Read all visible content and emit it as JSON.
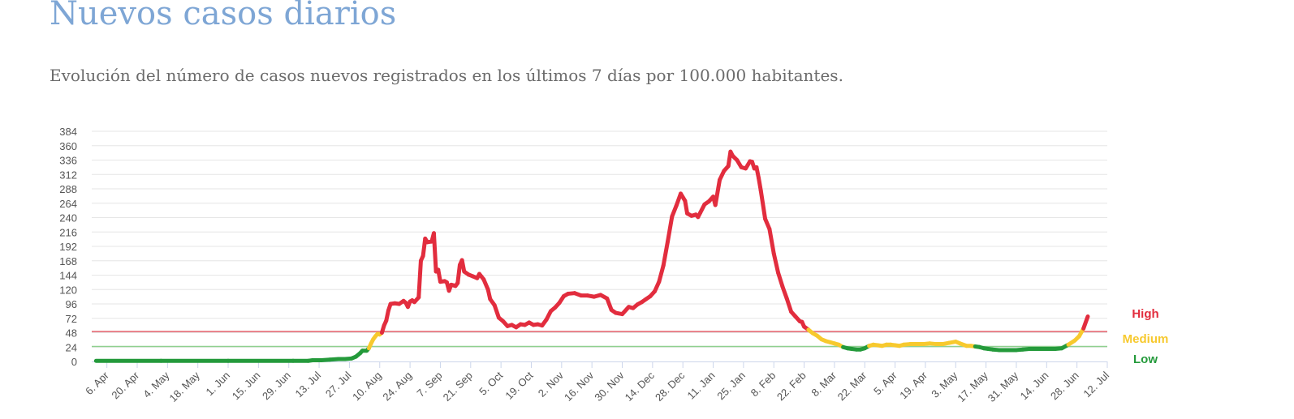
{
  "page": {
    "title": "Nuevos casos diarios",
    "subtitle": "Evolución del número de casos nuevos registrados en los últimos 7 días por 100.000 habitantes."
  },
  "colors": {
    "high": "#e22d3e",
    "medium": "#f7c92e",
    "low": "#249a3b",
    "title": "#7ea6d5"
  },
  "chart_data": {
    "type": "line",
    "ylim": [
      0,
      384
    ],
    "yticks": [
      0,
      24,
      48,
      72,
      96,
      120,
      144,
      168,
      192,
      216,
      240,
      264,
      288,
      312,
      336,
      360,
      384
    ],
    "xlim": [
      "2020-03-30",
      "2021-07-12"
    ],
    "xticks": [
      {
        "date": "2020-04-06",
        "label": "6. Apr"
      },
      {
        "date": "2020-04-20",
        "label": "20. Apr"
      },
      {
        "date": "2020-05-04",
        "label": "4. May"
      },
      {
        "date": "2020-05-18",
        "label": "18. May"
      },
      {
        "date": "2020-06-01",
        "label": "1. Jun"
      },
      {
        "date": "2020-06-15",
        "label": "15. Jun"
      },
      {
        "date": "2020-06-29",
        "label": "29. Jun"
      },
      {
        "date": "2020-07-13",
        "label": "13. Jul"
      },
      {
        "date": "2020-07-27",
        "label": "27. Jul"
      },
      {
        "date": "2020-08-10",
        "label": "10. Aug"
      },
      {
        "date": "2020-08-24",
        "label": "24. Aug"
      },
      {
        "date": "2020-09-07",
        "label": "7. Sep"
      },
      {
        "date": "2020-09-21",
        "label": "21. Sep"
      },
      {
        "date": "2020-10-05",
        "label": "5. Oct"
      },
      {
        "date": "2020-10-19",
        "label": "19. Oct"
      },
      {
        "date": "2020-11-02",
        "label": "2. Nov"
      },
      {
        "date": "2020-11-16",
        "label": "16. Nov"
      },
      {
        "date": "2020-11-30",
        "label": "30. Nov"
      },
      {
        "date": "2020-12-14",
        "label": "14. Dec"
      },
      {
        "date": "2020-12-28",
        "label": "28. Dec"
      },
      {
        "date": "2021-01-11",
        "label": "11. Jan"
      },
      {
        "date": "2021-01-25",
        "label": "25. Jan"
      },
      {
        "date": "2021-02-08",
        "label": "8. Feb"
      },
      {
        "date": "2021-02-22",
        "label": "22. Feb"
      },
      {
        "date": "2021-03-08",
        "label": "8. Mar"
      },
      {
        "date": "2021-03-22",
        "label": "22. Mar"
      },
      {
        "date": "2021-04-05",
        "label": "5. Apr"
      },
      {
        "date": "2021-04-19",
        "label": "19. Apr"
      },
      {
        "date": "2021-05-03",
        "label": "3. May"
      },
      {
        "date": "2021-05-17",
        "label": "17. May"
      },
      {
        "date": "2021-05-31",
        "label": "31. May"
      },
      {
        "date": "2021-06-14",
        "label": "14. Jun"
      },
      {
        "date": "2021-06-28",
        "label": "28. Jun"
      },
      {
        "date": "2021-07-12",
        "label": "12. Jul"
      }
    ],
    "thresholds": [
      {
        "name": "High",
        "value": 50,
        "line_color": "#e66a74",
        "label_color": "#e22d3e"
      },
      {
        "name": "Medium",
        "value": 25,
        "line_color": "#8fd08f",
        "label_color": "#f7c92e"
      },
      {
        "name": "Low",
        "value": null,
        "line_color": null,
        "label_color": "#249a3b"
      }
    ],
    "series": [
      {
        "points": [
          [
            "2020-04-01",
            1
          ],
          [
            "2020-05-01",
            1
          ],
          [
            "2020-06-01",
            1
          ],
          [
            "2020-07-01",
            1
          ],
          [
            "2020-07-08",
            1
          ],
          [
            "2020-07-10",
            2
          ],
          [
            "2020-07-14",
            2
          ],
          [
            "2020-07-18",
            3
          ],
          [
            "2020-07-22",
            4
          ],
          [
            "2020-07-25",
            4
          ],
          [
            "2020-07-28",
            5
          ],
          [
            "2020-07-30",
            8
          ],
          [
            "2020-08-01",
            14
          ],
          [
            "2020-08-02",
            18
          ],
          [
            "2020-08-04",
            18
          ],
          [
            "2020-08-05",
            22
          ],
          [
            "2020-08-06",
            30
          ],
          [
            "2020-08-07",
            37
          ],
          [
            "2020-08-08",
            42
          ],
          [
            "2020-08-09",
            46
          ],
          [
            "2020-08-10",
            45
          ],
          [
            "2020-08-11",
            48
          ],
          [
            "2020-08-12",
            60
          ],
          [
            "2020-08-13",
            68
          ],
          [
            "2020-08-14",
            85
          ],
          [
            "2020-08-15",
            96
          ],
          [
            "2020-08-17",
            97
          ],
          [
            "2020-08-19",
            96
          ],
          [
            "2020-08-21",
            101
          ],
          [
            "2020-08-22",
            98
          ],
          [
            "2020-08-23",
            91
          ],
          [
            "2020-08-24",
            100
          ],
          [
            "2020-08-25",
            102
          ],
          [
            "2020-08-26",
            99
          ],
          [
            "2020-08-28",
            107
          ],
          [
            "2020-08-29",
            168
          ],
          [
            "2020-08-30",
            176
          ],
          [
            "2020-08-31",
            205
          ],
          [
            "2020-09-01",
            199
          ],
          [
            "2020-09-03",
            200
          ],
          [
            "2020-09-04",
            214
          ],
          [
            "2020-09-05",
            150
          ],
          [
            "2020-09-06",
            153
          ],
          [
            "2020-09-07",
            133
          ],
          [
            "2020-09-09",
            134
          ],
          [
            "2020-09-10",
            132
          ],
          [
            "2020-09-11",
            118
          ],
          [
            "2020-09-12",
            128
          ],
          [
            "2020-09-14",
            126
          ],
          [
            "2020-09-15",
            131
          ],
          [
            "2020-09-16",
            161
          ],
          [
            "2020-09-17",
            169
          ],
          [
            "2020-09-18",
            150
          ],
          [
            "2020-09-20",
            145
          ],
          [
            "2020-09-22",
            142
          ],
          [
            "2020-09-24",
            139
          ],
          [
            "2020-09-25",
            146
          ],
          [
            "2020-09-27",
            137
          ],
          [
            "2020-09-29",
            120
          ],
          [
            "2020-09-30",
            104
          ],
          [
            "2020-10-02",
            94
          ],
          [
            "2020-10-04",
            73
          ],
          [
            "2020-10-06",
            67
          ],
          [
            "2020-10-08",
            59
          ],
          [
            "2020-10-10",
            61
          ],
          [
            "2020-10-12",
            57
          ],
          [
            "2020-10-14",
            62
          ],
          [
            "2020-10-16",
            61
          ],
          [
            "2020-10-18",
            65
          ],
          [
            "2020-10-20",
            61
          ],
          [
            "2020-10-22",
            62
          ],
          [
            "2020-10-24",
            60
          ],
          [
            "2020-10-26",
            70
          ],
          [
            "2020-10-28",
            84
          ],
          [
            "2020-10-30",
            90
          ],
          [
            "2020-11-01",
            98
          ],
          [
            "2020-11-03",
            109
          ],
          [
            "2020-11-05",
            113
          ],
          [
            "2020-11-08",
            114
          ],
          [
            "2020-11-11",
            110
          ],
          [
            "2020-11-14",
            110
          ],
          [
            "2020-11-17",
            108
          ],
          [
            "2020-11-20",
            111
          ],
          [
            "2020-11-23",
            105
          ],
          [
            "2020-11-25",
            86
          ],
          [
            "2020-11-27",
            81
          ],
          [
            "2020-11-30",
            79
          ],
          [
            "2020-12-03",
            91
          ],
          [
            "2020-12-05",
            89
          ],
          [
            "2020-12-07",
            95
          ],
          [
            "2020-12-09",
            99
          ],
          [
            "2020-12-11",
            104
          ],
          [
            "2020-12-13",
            109
          ],
          [
            "2020-12-15",
            117
          ],
          [
            "2020-12-17",
            133
          ],
          [
            "2020-12-19",
            160
          ],
          [
            "2020-12-21",
            200
          ],
          [
            "2020-12-23",
            242
          ],
          [
            "2020-12-25",
            260
          ],
          [
            "2020-12-27",
            280
          ],
          [
            "2020-12-29",
            268
          ],
          [
            "2020-12-30",
            247
          ],
          [
            "2021-01-01",
            243
          ],
          [
            "2021-01-03",
            245
          ],
          [
            "2021-01-04",
            241
          ],
          [
            "2021-01-05",
            248
          ],
          [
            "2021-01-07",
            262
          ],
          [
            "2021-01-09",
            267
          ],
          [
            "2021-01-11",
            275
          ],
          [
            "2021-01-12",
            261
          ],
          [
            "2021-01-14",
            303
          ],
          [
            "2021-01-16",
            318
          ],
          [
            "2021-01-18",
            326
          ],
          [
            "2021-01-19",
            350
          ],
          [
            "2021-01-20",
            343
          ],
          [
            "2021-01-22",
            336
          ],
          [
            "2021-01-24",
            324
          ],
          [
            "2021-01-26",
            322
          ],
          [
            "2021-01-28",
            334
          ],
          [
            "2021-01-29",
            333
          ],
          [
            "2021-01-30",
            322
          ],
          [
            "2021-01-31",
            324
          ],
          [
            "2021-02-01",
            306
          ],
          [
            "2021-02-02",
            285
          ],
          [
            "2021-02-04",
            238
          ],
          [
            "2021-02-06",
            221
          ],
          [
            "2021-02-08",
            180
          ],
          [
            "2021-02-10",
            148
          ],
          [
            "2021-02-12",
            125
          ],
          [
            "2021-02-14",
            105
          ],
          [
            "2021-02-16",
            83
          ],
          [
            "2021-02-18",
            75
          ],
          [
            "2021-02-20",
            67
          ],
          [
            "2021-02-21",
            66
          ],
          [
            "2021-02-22",
            58
          ],
          [
            "2021-02-24",
            53
          ],
          [
            "2021-02-26",
            47
          ],
          [
            "2021-02-28",
            43
          ],
          [
            "2021-03-02",
            37
          ],
          [
            "2021-03-04",
            34
          ],
          [
            "2021-03-06",
            32
          ],
          [
            "2021-03-08",
            30
          ],
          [
            "2021-03-10",
            28
          ],
          [
            "2021-03-12",
            24
          ],
          [
            "2021-03-14",
            22
          ],
          [
            "2021-03-16",
            21
          ],
          [
            "2021-03-18",
            20
          ],
          [
            "2021-03-20",
            20
          ],
          [
            "2021-03-22",
            22
          ],
          [
            "2021-03-24",
            26
          ],
          [
            "2021-03-26",
            28
          ],
          [
            "2021-03-28",
            27
          ],
          [
            "2021-03-30",
            26
          ],
          [
            "2021-04-01",
            28
          ],
          [
            "2021-04-03",
            28
          ],
          [
            "2021-04-05",
            27
          ],
          [
            "2021-04-07",
            26
          ],
          [
            "2021-04-09",
            28
          ],
          [
            "2021-04-12",
            29
          ],
          [
            "2021-04-15",
            29
          ],
          [
            "2021-04-18",
            29
          ],
          [
            "2021-04-21",
            30
          ],
          [
            "2021-04-24",
            29
          ],
          [
            "2021-04-27",
            29
          ],
          [
            "2021-04-30",
            31
          ],
          [
            "2021-05-03",
            33
          ],
          [
            "2021-05-05",
            30
          ],
          [
            "2021-05-08",
            26
          ],
          [
            "2021-05-10",
            26
          ],
          [
            "2021-05-12",
            25
          ],
          [
            "2021-05-14",
            24
          ],
          [
            "2021-05-16",
            22
          ],
          [
            "2021-05-18",
            21
          ],
          [
            "2021-05-20",
            20
          ],
          [
            "2021-05-23",
            19
          ],
          [
            "2021-05-27",
            19
          ],
          [
            "2021-05-31",
            19
          ],
          [
            "2021-06-03",
            20
          ],
          [
            "2021-06-06",
            21
          ],
          [
            "2021-06-09",
            21
          ],
          [
            "2021-06-12",
            21
          ],
          [
            "2021-06-15",
            21
          ],
          [
            "2021-06-18",
            21
          ],
          [
            "2021-06-21",
            22
          ],
          [
            "2021-06-24",
            28
          ],
          [
            "2021-06-27",
            35
          ],
          [
            "2021-06-29",
            42
          ],
          [
            "2021-07-01",
            55
          ],
          [
            "2021-07-03",
            75
          ]
        ]
      }
    ]
  }
}
